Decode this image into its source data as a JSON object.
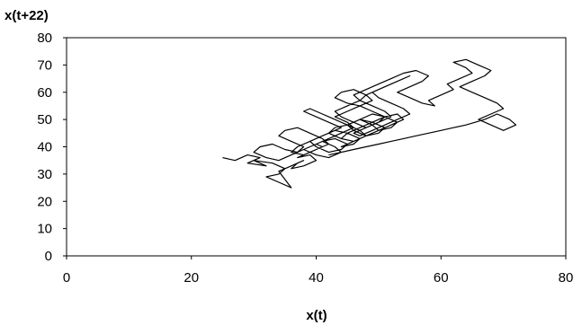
{
  "chart_data": {
    "type": "line",
    "title": "",
    "xlabel": "x(t)",
    "ylabel": "x(t+22)",
    "xlim": [
      0,
      80
    ],
    "ylim": [
      0,
      80
    ],
    "x_ticks": [
      0,
      20,
      40,
      60,
      80
    ],
    "y_ticks": [
      0,
      10,
      20,
      30,
      40,
      50,
      60,
      70,
      80
    ],
    "grid": false,
    "legend": "none",
    "line_color": "#000000",
    "series": [
      {
        "x": [
          25,
          27,
          29,
          31,
          29,
          32,
          30,
          33,
          35,
          34,
          32,
          34,
          36,
          35,
          34,
          36,
          38,
          37,
          36,
          38,
          40,
          39,
          37,
          39,
          41,
          40,
          38,
          40,
          42,
          44,
          43,
          41,
          43,
          45,
          44,
          42,
          40,
          39,
          41,
          43,
          45,
          47,
          46,
          44,
          46,
          48,
          47,
          45,
          43,
          42,
          44,
          46,
          48,
          50,
          49,
          47,
          49,
          51,
          50,
          48,
          46,
          45,
          47,
          49,
          51,
          53,
          52,
          50,
          52,
          54,
          53,
          51,
          49,
          47,
          45,
          44,
          46,
          48,
          47,
          45,
          43,
          41,
          39,
          38,
          40,
          42,
          44,
          43,
          41,
          39,
          37,
          36,
          38,
          40,
          42,
          41,
          39,
          37,
          35,
          34,
          36,
          38,
          37,
          35,
          33,
          31,
          30,
          32,
          34,
          36,
          38,
          40,
          42,
          44,
          46,
          45,
          43,
          45,
          47,
          49,
          48,
          46,
          44,
          43,
          45,
          47,
          49,
          51,
          50,
          48,
          46,
          47,
          49,
          51,
          53,
          55,
          54,
          52,
          50,
          49,
          51,
          53,
          55,
          54,
          52,
          50,
          48,
          47,
          45,
          43,
          44,
          46,
          48,
          50,
          52,
          51,
          49,
          47,
          46,
          48,
          50,
          52,
          54,
          56,
          58,
          57,
          55,
          53,
          55,
          57,
          59,
          58,
          60,
          62,
          61,
          63,
          65,
          64,
          62,
          64,
          66,
          68,
          67,
          65,
          63,
          65,
          67,
          69,
          70,
          68,
          66,
          68,
          70,
          72,
          71,
          69,
          67,
          64,
          62,
          60,
          58,
          56,
          54,
          52,
          50,
          48,
          46,
          44,
          42
        ],
        "y": [
          36,
          35,
          37,
          36,
          34,
          33,
          35,
          34,
          32,
          30,
          29,
          27,
          25,
          28,
          31,
          33,
          35,
          34,
          32,
          33,
          35,
          37,
          36,
          38,
          40,
          41,
          39,
          37,
          36,
          38,
          40,
          42,
          43,
          41,
          39,
          38,
          40,
          42,
          44,
          46,
          45,
          43,
          41,
          40,
          42,
          44,
          46,
          48,
          47,
          45,
          43,
          42,
          44,
          46,
          48,
          50,
          49,
          47,
          45,
          44,
          46,
          48,
          50,
          52,
          51,
          49,
          47,
          46,
          48,
          50,
          52,
          51,
          49,
          47,
          45,
          43,
          42,
          44,
          46,
          48,
          50,
          52,
          54,
          53,
          51,
          49,
          47,
          46,
          44,
          42,
          40,
          38,
          37,
          39,
          41,
          43,
          45,
          47,
          46,
          44,
          42,
          40,
          38,
          39,
          41,
          40,
          38,
          36,
          35,
          37,
          39,
          41,
          43,
          45,
          47,
          49,
          51,
          53,
          55,
          57,
          59,
          61,
          60,
          58,
          56,
          55,
          53,
          51,
          49,
          47,
          45,
          44,
          46,
          48,
          50,
          52,
          54,
          56,
          58,
          60,
          62,
          64,
          66,
          65,
          63,
          61,
          59,
          57,
          55,
          53,
          51,
          49,
          47,
          49,
          51,
          53,
          55,
          57,
          59,
          61,
          63,
          65,
          67,
          68,
          66,
          64,
          62,
          60,
          58,
          56,
          55,
          57,
          59,
          61,
          63,
          65,
          67,
          69,
          71,
          72,
          70,
          68,
          66,
          64,
          62,
          60,
          58,
          56,
          54,
          52,
          50,
          48,
          46,
          48,
          50,
          52,
          50,
          48,
          47,
          46,
          45,
          44,
          43,
          42,
          41,
          40,
          39,
          38,
          37
        ]
      }
    ]
  }
}
